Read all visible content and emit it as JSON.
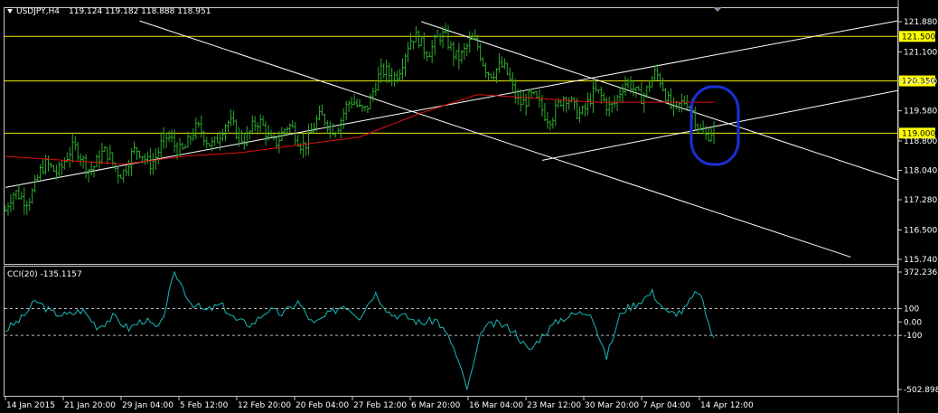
{
  "header": {
    "symbol": "USDJPY,H4",
    "ohlc": "119.124 119.182 118.888 118.951"
  },
  "indicator": {
    "label": "CCI(20) -135.1157"
  },
  "colors": {
    "background": "#000000",
    "bars": "#2ea82e",
    "moving_average": "#e01010",
    "cci_line": "#19b8b8",
    "level_lines": "#e8e800",
    "trend_lines": "#ffffff",
    "highlight_ellipse": "#1a2fd6",
    "price_badge_bg": "#ffff00",
    "price_badge_text": "#000000"
  },
  "chart_data": [
    {
      "type": "candlestick",
      "series": [
        {
          "name": "USDJPY",
          "x": [
            "14 Jan 2015",
            "21 Jan 20:00",
            "29 Jan 04:00",
            "5 Feb 12:00",
            "12 Feb 20:00",
            "20 Feb 04:00",
            "27 Feb 12:00",
            "6 Mar 20:00",
            "16 Mar 04:00",
            "23 Mar 12:00",
            "30 Mar 20:00",
            "7 Apr 04:00",
            "14 Apr 12:00"
          ],
          "values": [
            117.0,
            118.4,
            118.2,
            118.8,
            119.1,
            118.9,
            119.7,
            121.4,
            121.1,
            119.6,
            119.8,
            120.3,
            118.95
          ]
        },
        {
          "name": "MA",
          "values": [
            118.4,
            118.3,
            118.2,
            118.4,
            118.5,
            118.7,
            118.9,
            119.5,
            120.0,
            119.9,
            119.8,
            119.8,
            119.8
          ]
        }
      ],
      "ylim": [
        115.74,
        121.88
      ],
      "y_ticks": [
        "121.880",
        "121.100",
        "120.340",
        "119.580",
        "118.800",
        "118.040",
        "117.280",
        "116.500",
        "115.740"
      ],
      "x_ticks": [
        "14 Jan 2015",
        "21 Jan 20:00",
        "29 Jan 04:00",
        "5 Feb 12:00",
        "12 Feb 20:00",
        "20 Feb 04:00",
        "27 Feb 12:00",
        "6 Mar 20:00",
        "16 Mar 04:00",
        "23 Mar 12:00",
        "30 Mar 20:00",
        "7 Apr 04:00",
        "14 Apr 12:00"
      ],
      "levels": [
        {
          "label": "121.500",
          "value": 121.5
        },
        {
          "label": "120.350",
          "value": 120.35
        },
        {
          "label": "119.000",
          "value": 119.0
        }
      ],
      "grid": false
    },
    {
      "type": "line",
      "title": "CCI(20) -135.1157",
      "series": [
        {
          "name": "CCI(20)",
          "values": [
            -60,
            20,
            160,
            70,
            50,
            90,
            -40,
            40,
            -50,
            20,
            -60,
            372,
            150,
            80,
            130,
            10,
            -20,
            90,
            60,
            150,
            -20,
            60,
            130,
            40,
            220,
            60,
            40,
            -10,
            20,
            -160,
            -503,
            -40,
            -10,
            -60,
            -220,
            -80,
            20,
            60,
            80,
            -270,
            80,
            140,
            220,
            60,
            80,
            240,
            -135
          ]
        }
      ],
      "ylim": [
        -502.8983,
        372.2363
      ],
      "y_ticks": [
        "372.2363",
        "100",
        "0.00",
        "-100",
        "-502.8983"
      ],
      "levels": [
        100,
        -100
      ]
    }
  ]
}
